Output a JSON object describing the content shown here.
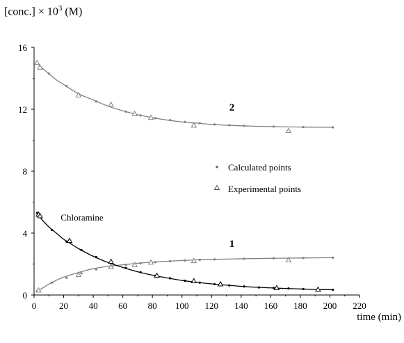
{
  "chart_data": {
    "type": "scatter",
    "ylabel": {
      "prefix": "[conc.]  × 10",
      "exponent": "3",
      "suffix": " (M)"
    },
    "xlabel": "time (min)",
    "xlim": [
      0,
      220
    ],
    "ylim": [
      0,
      16
    ],
    "xticks": [
      0,
      20,
      40,
      60,
      80,
      100,
      120,
      140,
      160,
      180,
      200,
      220
    ],
    "yticks": [
      0,
      4,
      8,
      12,
      16
    ],
    "grid": false,
    "legend": {
      "placement": "center-right",
      "entries": [
        {
          "label": "Calculated points",
          "marker": "dot"
        },
        {
          "label": "Experimental points",
          "marker": "triangle"
        }
      ]
    },
    "annotations": [
      {
        "text": "2",
        "x": 132,
        "y": 11.9,
        "bold": true
      },
      {
        "text": "1",
        "x": 132,
        "y": 3.1,
        "bold": true
      },
      {
        "text": "Chloramine",
        "x": 18,
        "y": 4.8,
        "bold": false
      }
    ],
    "series": [
      {
        "id": "curve-2",
        "color": "#7f7f7f",
        "curve": [
          [
            2,
            15.0
          ],
          [
            5,
            14.7
          ],
          [
            10,
            14.3
          ],
          [
            15,
            13.9
          ],
          [
            20,
            13.6
          ],
          [
            30,
            13.0
          ],
          [
            40,
            12.6
          ],
          [
            50,
            12.2
          ],
          [
            60,
            11.9
          ],
          [
            70,
            11.65
          ],
          [
            80,
            11.45
          ],
          [
            90,
            11.3
          ],
          [
            100,
            11.18
          ],
          [
            110,
            11.1
          ],
          [
            120,
            11.02
          ],
          [
            130,
            10.97
          ],
          [
            140,
            10.93
          ],
          [
            150,
            10.9
          ],
          [
            160,
            10.88
          ],
          [
            170,
            10.86
          ],
          [
            180,
            10.85
          ],
          [
            190,
            10.84
          ],
          [
            202,
            10.83
          ]
        ],
        "calculated": [
          [
            2,
            15.0
          ],
          [
            10,
            14.3
          ],
          [
            22,
            13.5
          ],
          [
            30,
            13.0
          ],
          [
            42,
            12.5
          ],
          [
            52,
            12.2
          ],
          [
            62,
            11.85
          ],
          [
            72,
            11.6
          ],
          [
            82,
            11.42
          ],
          [
            92,
            11.3
          ],
          [
            102,
            11.18
          ],
          [
            112,
            11.1
          ],
          [
            122,
            11.02
          ],
          [
            132,
            10.97
          ],
          [
            142,
            10.93
          ],
          [
            162,
            10.88
          ],
          [
            182,
            10.85
          ],
          [
            202,
            10.83
          ]
        ],
        "experimental": [
          [
            2,
            15.0
          ],
          [
            4,
            14.7
          ],
          [
            30,
            12.9
          ],
          [
            52,
            12.3
          ],
          [
            68,
            11.7
          ],
          [
            79,
            11.45
          ],
          [
            108,
            10.95
          ],
          [
            172,
            10.6
          ]
        ]
      },
      {
        "id": "curve-1",
        "color": "#7f7f7f",
        "curve": [
          [
            2,
            0.25
          ],
          [
            5,
            0.4
          ],
          [
            10,
            0.7
          ],
          [
            15,
            0.95
          ],
          [
            20,
            1.15
          ],
          [
            30,
            1.45
          ],
          [
            40,
            1.7
          ],
          [
            50,
            1.85
          ],
          [
            60,
            1.95
          ],
          [
            70,
            2.05
          ],
          [
            80,
            2.12
          ],
          [
            90,
            2.18
          ],
          [
            100,
            2.23
          ],
          [
            110,
            2.27
          ],
          [
            120,
            2.3
          ],
          [
            140,
            2.34
          ],
          [
            160,
            2.37
          ],
          [
            180,
            2.39
          ],
          [
            202,
            2.41
          ]
        ],
        "calculated": [
          [
            2,
            0.25
          ],
          [
            12,
            0.8
          ],
          [
            22,
            1.1
          ],
          [
            32,
            1.4
          ],
          [
            42,
            1.65
          ],
          [
            52,
            1.82
          ],
          [
            62,
            1.95
          ],
          [
            72,
            2.05
          ],
          [
            82,
            2.12
          ],
          [
            92,
            2.18
          ],
          [
            102,
            2.23
          ],
          [
            112,
            2.27
          ],
          [
            122,
            2.3
          ],
          [
            142,
            2.34
          ],
          [
            162,
            2.37
          ],
          [
            182,
            2.39
          ],
          [
            202,
            2.41
          ]
        ],
        "experimental": [
          [
            3,
            0.3
          ],
          [
            30,
            1.3
          ],
          [
            52,
            1.8
          ],
          [
            68,
            1.95
          ],
          [
            79,
            2.1
          ],
          [
            108,
            2.2
          ],
          [
            172,
            2.25
          ]
        ]
      },
      {
        "id": "chloramine",
        "color": "#000000",
        "curve": [
          [
            2,
            5.3
          ],
          [
            5,
            4.9
          ],
          [
            10,
            4.4
          ],
          [
            15,
            4.0
          ],
          [
            20,
            3.6
          ],
          [
            25,
            3.3
          ],
          [
            30,
            3.0
          ],
          [
            40,
            2.5
          ],
          [
            50,
            2.1
          ],
          [
            60,
            1.78
          ],
          [
            70,
            1.5
          ],
          [
            80,
            1.28
          ],
          [
            90,
            1.1
          ],
          [
            100,
            0.94
          ],
          [
            110,
            0.82
          ],
          [
            120,
            0.72
          ],
          [
            130,
            0.64
          ],
          [
            140,
            0.56
          ],
          [
            150,
            0.5
          ],
          [
            160,
            0.46
          ],
          [
            170,
            0.42
          ],
          [
            180,
            0.39
          ],
          [
            190,
            0.36
          ],
          [
            202,
            0.34
          ]
        ],
        "calculated": [
          [
            2,
            5.3
          ],
          [
            12,
            4.2
          ],
          [
            22,
            3.45
          ],
          [
            32,
            2.9
          ],
          [
            42,
            2.45
          ],
          [
            52,
            2.05
          ],
          [
            62,
            1.75
          ],
          [
            72,
            1.47
          ],
          [
            82,
            1.25
          ],
          [
            92,
            1.08
          ],
          [
            102,
            0.92
          ],
          [
            112,
            0.8
          ],
          [
            122,
            0.7
          ],
          [
            132,
            0.62
          ],
          [
            142,
            0.55
          ],
          [
            152,
            0.49
          ],
          [
            162,
            0.45
          ],
          [
            172,
            0.42
          ],
          [
            182,
            0.39
          ],
          [
            192,
            0.36
          ],
          [
            202,
            0.34
          ]
        ],
        "experimental": [
          [
            3,
            5.2
          ],
          [
            4,
            5.1
          ],
          [
            24,
            3.5
          ],
          [
            52,
            2.15
          ],
          [
            83,
            1.25
          ],
          [
            108,
            0.9
          ],
          [
            126,
            0.7
          ],
          [
            164,
            0.45
          ],
          [
            192,
            0.35
          ]
        ]
      }
    ]
  }
}
